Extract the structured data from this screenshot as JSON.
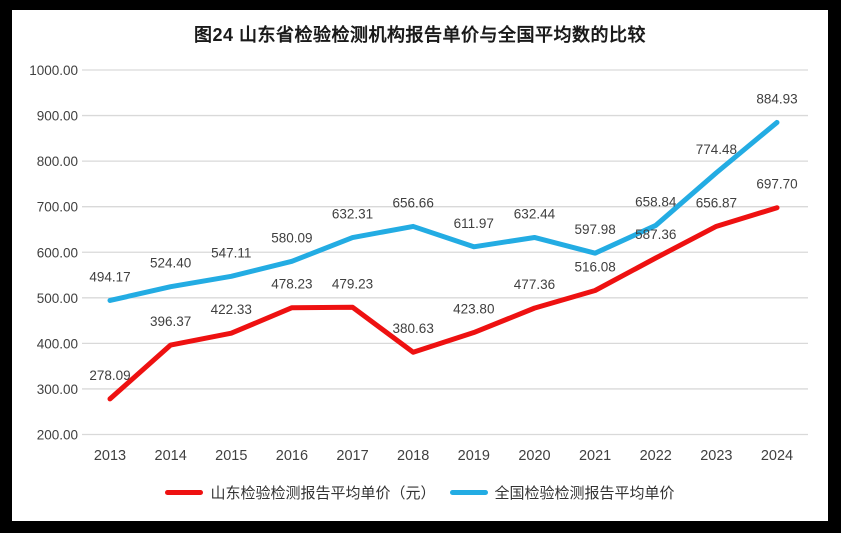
{
  "title": "图24  山东省检验检测机构报告单价与全国平均数的比较",
  "frame": {
    "border_color": "#000000",
    "background": "#ffffff"
  },
  "chart_data": {
    "type": "line",
    "categories": [
      "2013",
      "2014",
      "2015",
      "2016",
      "2017",
      "2018",
      "2019",
      "2020",
      "2021",
      "2022",
      "2023",
      "2024"
    ],
    "series": [
      {
        "name": "山东检验检测报告平均单价（元）",
        "color": "#ee1111",
        "values": [
          278.09,
          396.37,
          422.33,
          478.23,
          479.23,
          380.63,
          423.8,
          477.36,
          516.08,
          587.36,
          656.87,
          697.7
        ]
      },
      {
        "name": "全国检验检测报告平均单价",
        "color": "#23ace3",
        "values": [
          494.17,
          524.4,
          547.11,
          580.09,
          632.31,
          656.66,
          611.97,
          632.44,
          597.98,
          658.84,
          774.48,
          884.93
        ]
      }
    ],
    "ylim": [
      200,
      1000
    ],
    "ytick_step": 100,
    "ytick_labels": [
      "200.00",
      "300.00",
      "400.00",
      "500.00",
      "600.00",
      "700.00",
      "800.00",
      "900.00",
      "1000.00"
    ],
    "grid": true,
    "grid_color": "#d9d9d9",
    "legend_position": "bottom",
    "data_labels_shown": true,
    "label_color": "#404040",
    "axis_label_color": "#404040",
    "line_width": 5
  }
}
